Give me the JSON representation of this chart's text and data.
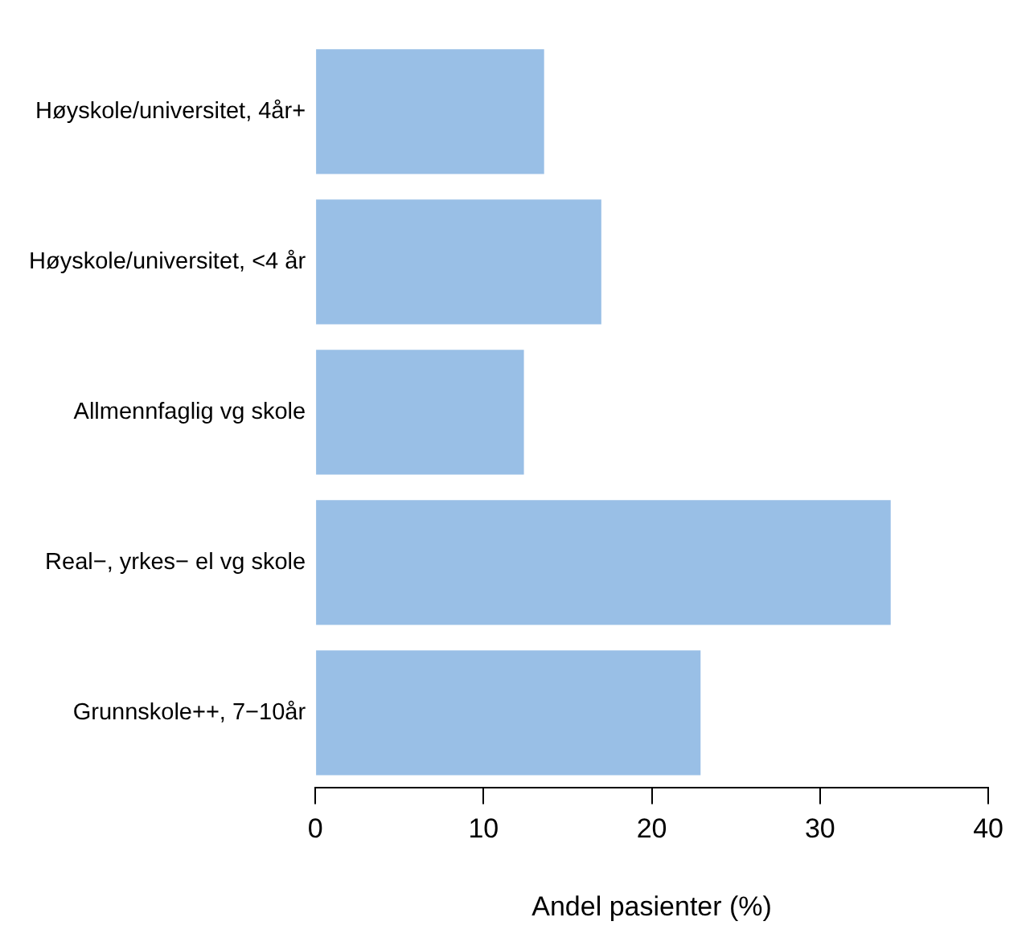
{
  "chart_data": {
    "type": "bar",
    "orientation": "horizontal",
    "xlabel": "Andel pasienter (%)",
    "categories": [
      "Høyskole/universitet, 4år+",
      "Høyskole/universitet, <4 år",
      "Allmennfaglig vg skole",
      "Real−, yrkes− el vg skole",
      "Grunnskole++, 7−10år"
    ],
    "values": [
      13.6,
      17.0,
      12.4,
      34.2,
      22.9
    ],
    "color": "#99bfe6",
    "xlim": [
      0,
      40
    ],
    "xticks": [
      0,
      10,
      20,
      30,
      40
    ],
    "grid": false,
    "legend": false
  }
}
